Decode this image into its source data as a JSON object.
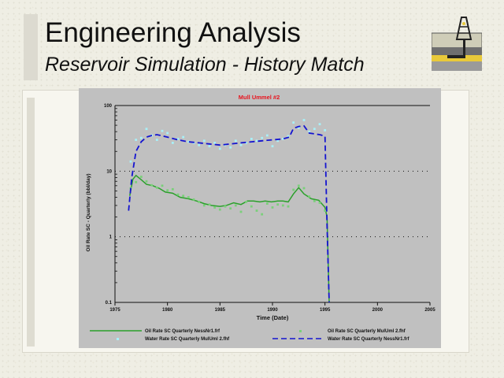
{
  "slide": {
    "title": "Engineering Analysis",
    "subtitle": "Reservoir Simulation - History Match"
  },
  "logo": {
    "icon": "oil-derrick-reservoir-icon"
  },
  "colors": {
    "plot_bg": "#c0c0c0",
    "frame_bg": "#ffffff",
    "title_red": "#e8141e",
    "oil_sim": "#2ba02b",
    "oil_hist": "#7ad07a",
    "water_sim": "#1414d0",
    "water_hist": "#a8f0f8"
  },
  "chart_data": {
    "type": "line",
    "title": "Mull Ummel #2",
    "xlabel": "Time (Date)",
    "ylabel": "Oil Rate SC - Quarterly (bbl/day)",
    "x_scale": "date",
    "y_scale": "log",
    "xlim": [
      1975,
      2005
    ],
    "ylim": [
      0.1,
      100
    ],
    "x_ticks": [
      "1975",
      "1980",
      "1985",
      "1990",
      "1995",
      "2000",
      "2005"
    ],
    "y_ticks": [
      "0.1",
      "1",
      "10",
      "100"
    ],
    "grid": "dotted horizontal lines at decades",
    "legend_position": "bottom",
    "series": [
      {
        "name": "Oil Rate SC  Quarterly NessNr1.frf",
        "style": "solid",
        "color": "#2ba02b",
        "x": [
          1976.4,
          1976.7,
          1977.0,
          1977.5,
          1978.0,
          1978.6,
          1979.2,
          1979.8,
          1980.5,
          1981.2,
          1982.0,
          1982.8,
          1983.5,
          1984.2,
          1985.0,
          1985.6,
          1986.3,
          1987.0,
          1987.6,
          1988.2,
          1988.8,
          1989.3,
          1989.9,
          1990.5,
          1991.0,
          1991.5,
          1992.0,
          1992.5,
          1993.0,
          1993.7,
          1994.4,
          1995.0,
          1995.2,
          1995.4
        ],
        "y": [
          4.2,
          7.5,
          8.6,
          7.4,
          6.3,
          6.0,
          5.5,
          4.8,
          4.6,
          4.0,
          3.8,
          3.5,
          3.2,
          3.0,
          2.9,
          3.0,
          3.3,
          3.1,
          3.5,
          3.5,
          3.4,
          3.5,
          3.4,
          3.5,
          3.5,
          3.4,
          4.5,
          5.6,
          4.5,
          3.8,
          3.6,
          2.8,
          2.0,
          0.1
        ]
      },
      {
        "name": "Oil Rate SC  Quarterly MulUml 2.fhf",
        "style": "markers",
        "color": "#7ad07a",
        "x": [
          1976.5,
          1977.0,
          1977.5,
          1978.0,
          1978.5,
          1979.0,
          1979.5,
          1980.0,
          1980.5,
          1981.0,
          1981.5,
          1982.0,
          1982.5,
          1983.0,
          1983.5,
          1984.0,
          1984.5,
          1985.0,
          1985.5,
          1986.0,
          1986.5,
          1987.0,
          1987.5,
          1988.0,
          1988.5,
          1989.0,
          1989.5,
          1990.0,
          1990.5,
          1991.0,
          1991.5,
          1992.0,
          1992.5,
          1993.0,
          1993.5,
          1994.0,
          1994.5,
          1995.0
        ],
        "y": [
          5.5,
          6.8,
          8.2,
          7.0,
          6.1,
          5.6,
          6.0,
          5.1,
          5.3,
          4.4,
          4.2,
          4.0,
          3.7,
          3.4,
          3.0,
          3.1,
          2.8,
          2.6,
          2.9,
          2.7,
          3.0,
          2.4,
          3.4,
          2.9,
          2.5,
          2.2,
          3.2,
          2.8,
          3.1,
          3.0,
          2.9,
          5.2,
          6.0,
          5.5,
          4.1,
          3.5,
          3.3,
          2.5
        ]
      },
      {
        "name": "Water Rate SC  Quarterly MulUml 2.fhf",
        "style": "markers",
        "color": "#a8f0f8",
        "x": [
          1976.5,
          1977.0,
          1977.5,
          1978.0,
          1978.5,
          1979.0,
          1979.5,
          1980.0,
          1980.5,
          1981.0,
          1981.5,
          1982.0,
          1982.5,
          1983.0,
          1983.5,
          1984.0,
          1984.5,
          1985.0,
          1985.5,
          1986.0,
          1986.5,
          1987.0,
          1987.5,
          1988.0,
          1988.5,
          1989.0,
          1989.5,
          1990.0,
          1990.5,
          1991.0,
          1991.5,
          1992.0,
          1992.5,
          1993.0,
          1993.5,
          1994.0,
          1994.5,
          1995.0
        ],
        "y": [
          14,
          30,
          32,
          44,
          35,
          30,
          41,
          38,
          27,
          31,
          33,
          28,
          27,
          25,
          29,
          24,
          27,
          22,
          25,
          23,
          29,
          25,
          27,
          31,
          29,
          32,
          35,
          24,
          29,
          31,
          34,
          55,
          46,
          60,
          40,
          44,
          52,
          42
        ]
      },
      {
        "name": "Water Rate SC  Quarterly NessNr1.frf",
        "style": "dashed",
        "color": "#1414d0",
        "x": [
          1976.3,
          1976.6,
          1977.0,
          1977.5,
          1978.0,
          1978.5,
          1979.0,
          1980.0,
          1981.0,
          1982.0,
          1983.0,
          1984.0,
          1985.0,
          1986.0,
          1987.0,
          1988.0,
          1989.0,
          1990.0,
          1991.0,
          1991.6,
          1992.0,
          1992.5,
          1993.0,
          1993.5,
          1994.0,
          1994.5,
          1995.0,
          1995.2,
          1995.4
        ],
        "y": [
          2.5,
          8,
          20,
          28,
          33,
          35,
          36,
          33,
          30,
          28,
          27,
          26,
          25,
          26,
          27,
          28,
          29,
          30,
          31,
          33,
          45,
          48,
          49,
          38,
          37,
          36,
          34,
          1.5,
          0.1
        ]
      }
    ]
  }
}
